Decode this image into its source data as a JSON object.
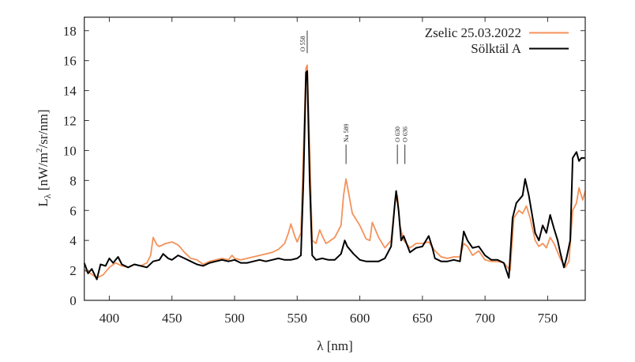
{
  "chart_data": {
    "type": "line",
    "title": "",
    "xlabel": "λ [nm]",
    "ylabel_main": "L",
    "ylabel_sub": "λ",
    "ylabel_rest": " [nW/m",
    "ylabel_sup": "2",
    "ylabel_end": "/sr/nm]",
    "xlim": [
      380,
      780
    ],
    "ylim": [
      0,
      18.9
    ],
    "xticks": [
      400,
      450,
      500,
      550,
      600,
      650,
      700,
      750
    ],
    "yticks": [
      0,
      2,
      4,
      6,
      8,
      10,
      12,
      14,
      16,
      18
    ],
    "grid": false,
    "legend": "top-right",
    "annotations": [
      {
        "label": "O 558",
        "x": 558,
        "y_range": [
          16.5,
          18
        ]
      },
      {
        "label": "Na 589",
        "x": 589,
        "y_range": [
          9.1,
          10.4
        ]
      },
      {
        "label": "O 630",
        "x": 630,
        "y_range": [
          9.1,
          10.4
        ]
      },
      {
        "label": "O 636",
        "x": 636,
        "y_range": [
          9.1,
          10.4
        ]
      }
    ],
    "series": [
      {
        "name": "Zselic 25.03.2022",
        "color": "#f4925a",
        "x": [
          380,
          385,
          390,
          395,
          400,
          405,
          410,
          415,
          420,
          425,
          430,
          433,
          435,
          438,
          440,
          445,
          450,
          455,
          460,
          465,
          470,
          475,
          480,
          485,
          490,
          495,
          498,
          500,
          505,
          510,
          515,
          520,
          525,
          530,
          535,
          540,
          543,
          545,
          548,
          550,
          553,
          555,
          557,
          558,
          560,
          562,
          565,
          568,
          570,
          573,
          575,
          580,
          585,
          587,
          589,
          591,
          594,
          600,
          605,
          608,
          610,
          612,
          615,
          620,
          625,
          628,
          630,
          632,
          635,
          640,
          645,
          650,
          655,
          660,
          665,
          670,
          675,
          680,
          683,
          686,
          690,
          695,
          700,
          705,
          710,
          715,
          720,
          723,
          727,
          730,
          733,
          736,
          740,
          743,
          746,
          749,
          752,
          755,
          760,
          764,
          767,
          770,
          773,
          775,
          778,
          780
        ],
        "y": [
          2.0,
          1.8,
          1.5,
          1.7,
          2.2,
          2.5,
          2.3,
          2.2,
          2.4,
          2.3,
          2.5,
          3.0,
          4.2,
          3.7,
          3.6,
          3.8,
          3.9,
          3.7,
          3.2,
          2.8,
          2.7,
          2.4,
          2.6,
          2.7,
          2.8,
          2.7,
          3.0,
          2.8,
          2.7,
          2.8,
          2.9,
          3.0,
          3.1,
          3.2,
          3.4,
          3.8,
          4.5,
          5.1,
          4.3,
          3.9,
          4.5,
          10.0,
          15.5,
          15.7,
          10.0,
          4.0,
          3.8,
          4.7,
          4.3,
          3.8,
          3.9,
          4.2,
          5.0,
          7.0,
          8.1,
          7.2,
          5.8,
          5.0,
          4.1,
          4.0,
          5.2,
          4.8,
          4.2,
          3.5,
          4.0,
          6.5,
          7.0,
          5.0,
          4.0,
          3.5,
          3.8,
          3.8,
          3.9,
          3.3,
          2.9,
          2.8,
          2.9,
          2.9,
          3.8,
          3.6,
          3.0,
          3.3,
          2.7,
          2.6,
          2.6,
          2.5,
          2.0,
          5.5,
          6.0,
          5.8,
          6.3,
          5.5,
          4.0,
          3.6,
          3.8,
          3.5,
          4.2,
          3.8,
          2.8,
          2.2,
          2.6,
          6.0,
          6.5,
          7.5,
          6.7,
          7.3
        ]
      },
      {
        "name": "Sölktäl A",
        "color": "#000000",
        "x": [
          380,
          383,
          386,
          390,
          393,
          397,
          400,
          403,
          407,
          410,
          415,
          420,
          425,
          430,
          435,
          440,
          443,
          447,
          450,
          455,
          460,
          465,
          470,
          475,
          480,
          485,
          490,
          495,
          500,
          505,
          510,
          515,
          520,
          525,
          530,
          535,
          540,
          545,
          550,
          553,
          555,
          557,
          558,
          560,
          562,
          565,
          570,
          575,
          580,
          585,
          588,
          590,
          595,
          600,
          605,
          610,
          615,
          620,
          625,
          628,
          629,
          631,
          633,
          635,
          640,
          645,
          650,
          655,
          658,
          660,
          665,
          670,
          675,
          680,
          683,
          686,
          690,
          695,
          700,
          705,
          710,
          715,
          719,
          722,
          725,
          730,
          732,
          735,
          740,
          743,
          746,
          749,
          752,
          755,
          758,
          760,
          763,
          765,
          768,
          770,
          773,
          775,
          777,
          780
        ],
        "y": [
          2.5,
          1.8,
          2.1,
          1.4,
          2.4,
          2.3,
          2.8,
          2.5,
          2.9,
          2.4,
          2.2,
          2.4,
          2.3,
          2.2,
          2.6,
          2.7,
          3.1,
          2.8,
          2.7,
          3.0,
          2.8,
          2.6,
          2.4,
          2.3,
          2.5,
          2.6,
          2.7,
          2.6,
          2.7,
          2.5,
          2.5,
          2.6,
          2.7,
          2.6,
          2.7,
          2.8,
          2.7,
          2.7,
          2.8,
          3.0,
          8.0,
          15.2,
          15.3,
          8.0,
          3.0,
          2.7,
          2.8,
          2.7,
          2.7,
          3.1,
          4.0,
          3.6,
          3.1,
          2.7,
          2.6,
          2.6,
          2.6,
          2.8,
          3.6,
          6.5,
          7.3,
          6.0,
          4.0,
          4.3,
          3.2,
          3.5,
          3.6,
          4.3,
          3.5,
          2.8,
          2.6,
          2.6,
          2.7,
          2.6,
          4.6,
          4.0,
          3.5,
          3.6,
          3.0,
          2.7,
          2.7,
          2.5,
          1.5,
          5.5,
          6.5,
          7.0,
          8.1,
          7.0,
          4.5,
          4.0,
          5.0,
          4.5,
          5.7,
          4.8,
          4.0,
          3.2,
          2.2,
          2.8,
          4.0,
          9.5,
          9.9,
          9.3,
          9.5,
          9.5
        ]
      }
    ]
  }
}
